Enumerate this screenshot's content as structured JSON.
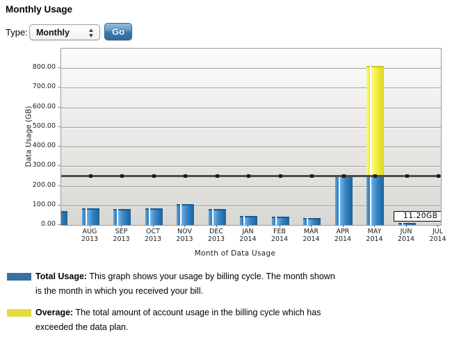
{
  "page": {
    "title": "Monthly Usage"
  },
  "controls": {
    "type_label": "Type:",
    "type_value": "Monthly",
    "go_label": "Go"
  },
  "chart_data": {
    "type": "bar",
    "title": "",
    "xlabel": "Month of Data Usage",
    "ylabel": "Data Usage (GB)",
    "ylim": [
      0,
      900
    ],
    "ytick_interval": 100,
    "ytick_labels": [
      "0.00",
      "100.00",
      "200.00",
      "300.00",
      "400.00",
      "500.00",
      "600.00",
      "700.00",
      "800.00"
    ],
    "grid": true,
    "legend_position": "below",
    "categories": [
      "AUG 2013",
      "SEP 2013",
      "OCT 2013",
      "NOV 2013",
      "DEC 2013",
      "JAN 2014",
      "FEB 2014",
      "MAR 2014",
      "APR 2014",
      "MAY 2014",
      "JUN 2014",
      "JUL 2014"
    ],
    "series": [
      {
        "name": "Total Usage",
        "color": "#2e7cc0",
        "values": [
          84,
          82,
          86,
          107,
          80,
          45,
          44,
          37,
          250,
          250,
          11.2,
          0
        ]
      },
      {
        "name": "Overage",
        "color": "#f0ea35",
        "values": [
          0,
          0,
          0,
          0,
          0,
          0,
          0,
          0,
          0,
          560,
          0,
          0
        ]
      }
    ],
    "partial_left_edge_bar_value": 72,
    "data_plan_limit": 250,
    "tooltip": {
      "text": "11.20GB",
      "month": "JUN 2014"
    }
  },
  "legend": [
    {
      "term": "Total Usage:",
      "description": "This graph shows your usage by billing cycle. The month shown is the month in which you received your bill.",
      "color": "#36719f"
    },
    {
      "term": "Overage:",
      "description": "The total amount of account usage in the billing cycle which has exceeded the data plan.",
      "color": "#e2dd3d"
    }
  ],
  "colors": {
    "bar_blue": "#2e7cc0",
    "bar_yellow": "#f0ea35",
    "plan_line": "#4a4a4a",
    "go_button": "#3a79ac"
  }
}
